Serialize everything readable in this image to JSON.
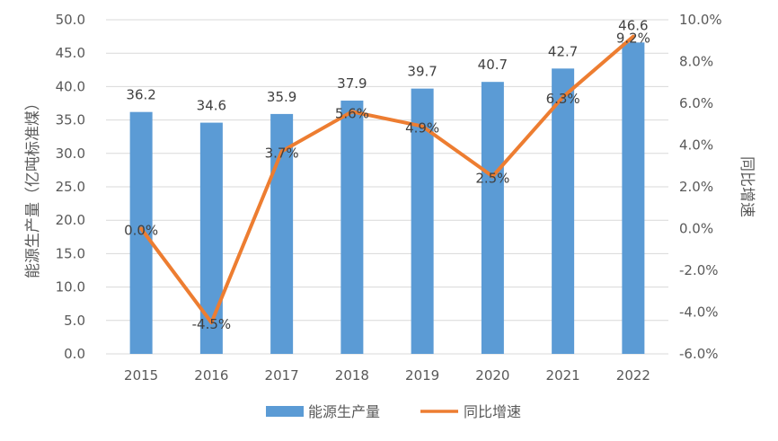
{
  "chart_data": {
    "type": "bar",
    "categories": [
      "2015",
      "2016",
      "2017",
      "2018",
      "2019",
      "2020",
      "2021",
      "2022"
    ],
    "series": [
      {
        "name": "能源生产量",
        "type": "bar",
        "axis": "left",
        "color": "#5b9bd5",
        "values": [
          36.2,
          34.6,
          35.9,
          37.9,
          39.7,
          40.7,
          42.7,
          46.6
        ],
        "labels": [
          "36.2",
          "34.6",
          "35.9",
          "37.9",
          "39.7",
          "40.7",
          "42.7",
          "46.6"
        ]
      },
      {
        "name": "同比增速",
        "type": "line",
        "axis": "right",
        "color": "#ed7d31",
        "values": [
          0.0,
          -4.5,
          3.7,
          5.6,
          4.9,
          2.5,
          6.3,
          9.2
        ],
        "labels": [
          "0.0%",
          "-4.5%",
          "3.7%",
          "5.6%",
          "4.9%",
          "2.5%",
          "6.3%",
          "9.2%"
        ]
      }
    ],
    "ylabel": "能源生产量（亿吨标准煤）",
    "y2label": "同比增速",
    "ylim": [
      0,
      50
    ],
    "y2lim": [
      -6,
      10
    ],
    "yticks": [
      "0.0",
      "5.0",
      "10.0",
      "15.0",
      "20.0",
      "25.0",
      "30.0",
      "35.0",
      "40.0",
      "45.0",
      "50.0"
    ],
    "y2ticks": [
      "-6.0%",
      "-4.0%",
      "-2.0%",
      "0.0%",
      "2.0%",
      "4.0%",
      "6.0%",
      "8.0%",
      "10.0%"
    ],
    "grid": true,
    "legend": "bottom-center"
  }
}
